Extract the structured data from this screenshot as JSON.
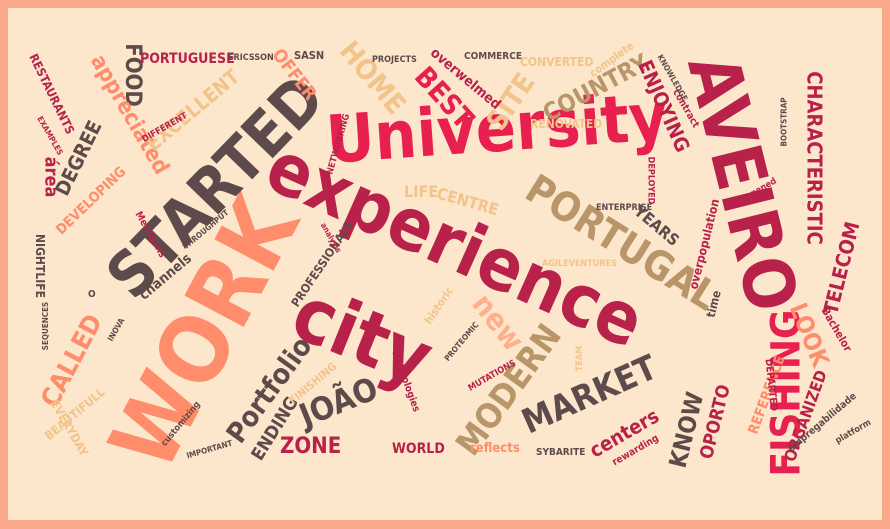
{
  "words": [
    {
      "key": "university",
      "text": "University"
    },
    {
      "key": "experience",
      "text": "experience"
    },
    {
      "key": "aveiro",
      "text": "AVEIRO"
    },
    {
      "key": "work",
      "text": "WORK"
    },
    {
      "key": "started",
      "text": "STARTED"
    },
    {
      "key": "city",
      "text": "city"
    },
    {
      "key": "portugal",
      "text": "PORTUGAL"
    },
    {
      "key": "fishing",
      "text": "FISHING"
    },
    {
      "key": "characteristic",
      "text": "CHARACTERISTIC"
    },
    {
      "key": "market",
      "text": "MARKET"
    },
    {
      "key": "modern",
      "text": "MODERN"
    },
    {
      "key": "joao",
      "text": "JOÃO"
    },
    {
      "key": "portfolio",
      "text": "Portfolio"
    },
    {
      "key": "called",
      "text": "CALLED"
    },
    {
      "key": "home",
      "text": "HOME"
    },
    {
      "key": "best",
      "text": "BEST"
    },
    {
      "key": "site",
      "text": "SITE"
    },
    {
      "key": "country",
      "text": "COUNTRY"
    },
    {
      "key": "enjoying",
      "text": "ENJOYING"
    },
    {
      "key": "look",
      "text": "LOOK"
    },
    {
      "key": "telecom",
      "text": "TELECOM"
    },
    {
      "key": "know",
      "text": "KNOW"
    },
    {
      "key": "oporto",
      "text": "OPORTO"
    },
    {
      "key": "centers",
      "text": "centers"
    },
    {
      "key": "new",
      "text": "new"
    },
    {
      "key": "zone",
      "text": "ZONE"
    },
    {
      "key": "ending",
      "text": "ENDING"
    },
    {
      "key": "food",
      "text": "FOOD"
    },
    {
      "key": "appreciated",
      "text": "appreciated"
    },
    {
      "key": "excellent",
      "text": "EXCELLENT"
    },
    {
      "key": "degree",
      "text": "DEGREE"
    },
    {
      "key": "developing",
      "text": "DEVELOPING"
    },
    {
      "key": "area",
      "text": "área"
    },
    {
      "key": "portuguese",
      "text": "PORTUGUESE"
    },
    {
      "key": "offer",
      "text": "OFFER"
    },
    {
      "key": "restaurants",
      "text": "RESTAURANTS"
    },
    {
      "key": "life",
      "text": "LIFE"
    },
    {
      "key": "centre",
      "text": "CENTRE"
    },
    {
      "key": "years",
      "text": "YEARS"
    },
    {
      "key": "reference",
      "text": "REFERENCE"
    },
    {
      "key": "organized",
      "text": "ORGANIZED"
    },
    {
      "key": "departed",
      "text": "DEPARTED"
    },
    {
      "key": "bachelor",
      "text": "Bachelor"
    },
    {
      "key": "empregabilidade",
      "text": "empregabilidade"
    },
    {
      "key": "platform",
      "text": "platform"
    },
    {
      "key": "rewarding",
      "text": "rewarding"
    },
    {
      "key": "reflects",
      "text": "reflects"
    },
    {
      "key": "sybarite",
      "text": "SYBARITE"
    },
    {
      "key": "world",
      "text": "WORLD"
    },
    {
      "key": "everyday",
      "text": "EVERYDAY"
    },
    {
      "key": "beautifull",
      "text": "BEAUTIFULL"
    },
    {
      "key": "nightlife",
      "text": "NIGHTLIFE"
    },
    {
      "key": "channels",
      "text": "channels"
    },
    {
      "key": "professionals",
      "text": "PROFESSIONALS"
    },
    {
      "key": "overpopulation",
      "text": "overpopulation"
    },
    {
      "key": "time",
      "text": "time"
    },
    {
      "key": "renovated",
      "text": "RENOVATED"
    },
    {
      "key": "converted",
      "text": "CONVERTED"
    },
    {
      "key": "commerce",
      "text": "COMMERCE"
    },
    {
      "key": "complete",
      "text": "complete"
    },
    {
      "key": "overwelmed",
      "text": "overwelmed"
    },
    {
      "key": "projects",
      "text": "PROJECTS"
    },
    {
      "key": "sasn",
      "text": "SASN"
    },
    {
      "key": "ericsson",
      "text": "ERICSSON"
    },
    {
      "key": "networking",
      "text": "NETWORKING"
    },
    {
      "key": "knowledge",
      "text": "KNOWLEDGE"
    },
    {
      "key": "contract",
      "text": "contract"
    },
    {
      "key": "bootstrap",
      "text": "BOOTSTRAP"
    },
    {
      "key": "happened",
      "text": "happened"
    },
    {
      "key": "deployed",
      "text": "DEPLOYED"
    },
    {
      "key": "enterprise",
      "text": "ENTERPRISE"
    },
    {
      "key": "agileventures",
      "text": "AGILEVENTURES"
    },
    {
      "key": "historic",
      "text": "historic"
    },
    {
      "key": "proteomic",
      "text": "PROTEOMIC"
    },
    {
      "key": "mutations",
      "text": "MUTATIONS"
    },
    {
      "key": "team",
      "text": "TEAM"
    },
    {
      "key": "technologies",
      "text": "Technologies"
    },
    {
      "key": "finishing",
      "text": "FINISHING"
    },
    {
      "key": "analysis",
      "text": "analysis"
    },
    {
      "key": "merrigans",
      "text": "Merrigans"
    },
    {
      "key": "throughput",
      "text": "THROUGHPUT"
    },
    {
      "key": "different",
      "text": "DIFFERENT"
    },
    {
      "key": "examples",
      "text": "EXAMPLES"
    },
    {
      "key": "inova",
      "text": "INOVA"
    },
    {
      "key": "sequences",
      "text": "SEQUENCES"
    },
    {
      "key": "o",
      "text": "O"
    },
    {
      "key": "customizing",
      "text": "customizing"
    },
    {
      "key": "important",
      "text": "IMPORTANT"
    }
  ]
}
